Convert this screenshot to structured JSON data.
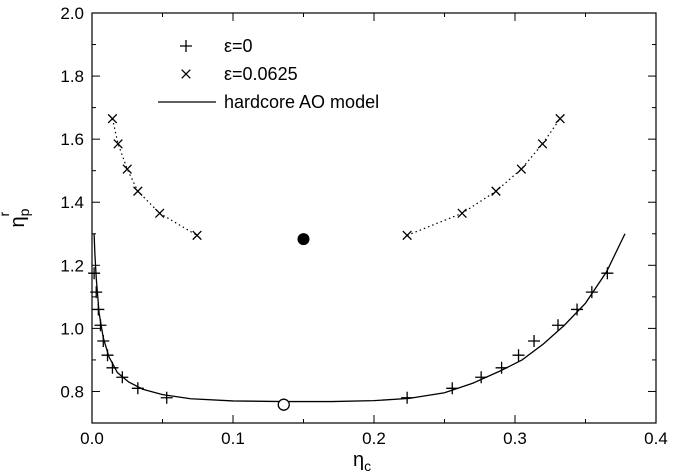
{
  "chart_data": {
    "type": "scatter",
    "xlabel": "η",
    "xlabel_sub": "c",
    "ylabel": "η",
    "ylabel_sub": "p",
    "ylabel_sup": "r",
    "xlim": [
      0.0,
      0.4
    ],
    "ylim": [
      0.7,
      2.0
    ],
    "x_ticks": [
      0.0,
      0.1,
      0.2,
      0.3,
      0.4
    ],
    "x_tick_labels": [
      "0.0",
      "0.1",
      "0.2",
      "0.3",
      "0.4"
    ],
    "y_ticks": [
      0.8,
      1.0,
      1.2,
      1.4,
      1.6,
      1.8,
      2.0
    ],
    "y_tick_labels": [
      "0.8",
      "1.0",
      "1.2",
      "1.4",
      "1.6",
      "1.8",
      "2.0"
    ],
    "grid": false,
    "legend_position": "top-left",
    "series": [
      {
        "name": "ε=0",
        "marker": "plus",
        "points": [
          [
            0.0015,
            1.175
          ],
          [
            0.003,
            1.115
          ],
          [
            0.0045,
            1.06
          ],
          [
            0.006,
            1.01
          ],
          [
            0.008,
            0.96
          ],
          [
            0.011,
            0.915
          ],
          [
            0.0145,
            0.875
          ],
          [
            0.0215,
            0.845
          ],
          [
            0.0325,
            0.81
          ],
          [
            0.053,
            0.78
          ],
          [
            0.2235,
            0.78
          ],
          [
            0.2555,
            0.81
          ],
          [
            0.276,
            0.845
          ],
          [
            0.2905,
            0.875
          ],
          [
            0.3025,
            0.915
          ],
          [
            0.3135,
            0.96
          ],
          [
            0.3305,
            1.01
          ],
          [
            0.344,
            1.06
          ],
          [
            0.3545,
            1.115
          ],
          [
            0.3655,
            1.175
          ]
        ]
      },
      {
        "name": "ε=0.0625",
        "marker": "cross",
        "line": "dotted",
        "branches": [
          [
            [
              0.0145,
              1.665
            ],
            [
              0.0185,
              1.585
            ],
            [
              0.025,
              1.505
            ],
            [
              0.0325,
              1.435
            ],
            [
              0.048,
              1.365
            ],
            [
              0.0745,
              1.295
            ]
          ],
          [
            [
              0.2235,
              1.295
            ],
            [
              0.2625,
              1.365
            ],
            [
              0.2865,
              1.435
            ],
            [
              0.3045,
              1.505
            ],
            [
              0.3195,
              1.585
            ],
            [
              0.332,
              1.665
            ]
          ]
        ]
      },
      {
        "name": "hardcore AO model",
        "marker": "none",
        "line": "solid",
        "points": [
          [
            0.0015,
            1.3
          ],
          [
            0.002,
            1.24
          ],
          [
            0.003,
            1.16
          ],
          [
            0.005,
            1.05
          ],
          [
            0.008,
            0.97
          ],
          [
            0.012,
            0.91
          ],
          [
            0.018,
            0.86
          ],
          [
            0.026,
            0.83
          ],
          [
            0.036,
            0.807
          ],
          [
            0.05,
            0.79
          ],
          [
            0.07,
            0.777
          ],
          [
            0.1,
            0.77
          ],
          [
            0.136,
            0.768
          ],
          [
            0.17,
            0.768
          ],
          [
            0.2,
            0.771
          ],
          [
            0.225,
            0.778
          ],
          [
            0.25,
            0.796
          ],
          [
            0.27,
            0.826
          ],
          [
            0.29,
            0.866
          ],
          [
            0.305,
            0.9
          ],
          [
            0.32,
            0.95
          ],
          [
            0.335,
            1.01
          ],
          [
            0.35,
            1.08
          ],
          [
            0.365,
            1.18
          ],
          [
            0.378,
            1.3
          ]
        ]
      },
      {
        "name": "",
        "marker": "filled-circle",
        "points": [
          [
            0.15,
            1.283
          ]
        ]
      },
      {
        "name": "",
        "marker": "open-circle",
        "points": [
          [
            0.136,
            0.758
          ]
        ]
      }
    ]
  }
}
